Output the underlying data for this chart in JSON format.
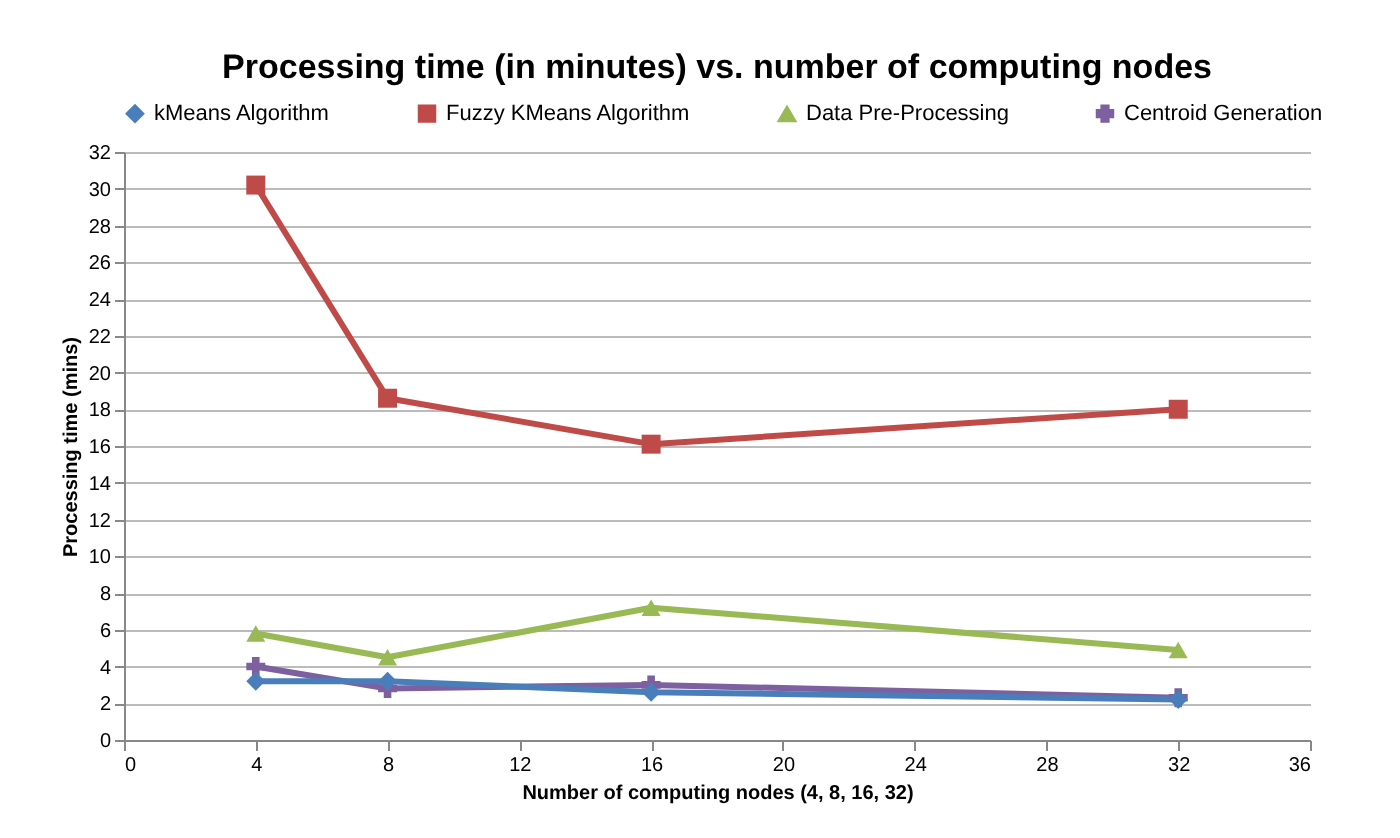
{
  "chart_data": {
    "type": "line",
    "title": "Processing time (in minutes) vs. number of computing nodes",
    "xlabel": "Number of computing nodes (4, 8, 16, 32)",
    "ylabel": "Processing time (mins)",
    "x": [
      4,
      8,
      16,
      32
    ],
    "series": [
      {
        "name": "kMeans Algorithm",
        "color": "#4a7ebb",
        "marker": "diamond",
        "values": [
          3.2,
          3.2,
          2.6,
          2.2
        ]
      },
      {
        "name": "Fuzzy KMeans Algorithm",
        "color": "#be4b48",
        "marker": "square",
        "values": [
          30.2,
          18.6,
          16.1,
          18.0
        ]
      },
      {
        "name": "Data Pre-Processing",
        "color": "#98b954",
        "marker": "triangle",
        "values": [
          5.8,
          4.5,
          7.2,
          4.9
        ]
      },
      {
        "name": "Centroid Generation",
        "color": "#7d60a0",
        "marker": "cross",
        "values": [
          4.0,
          2.8,
          3.0,
          2.3
        ]
      }
    ],
    "xlim": [
      0,
      36
    ],
    "xticks": [
      0,
      4,
      8,
      12,
      16,
      20,
      24,
      28,
      32,
      36
    ],
    "ylim": [
      0,
      32
    ],
    "yticks": [
      0,
      2,
      4,
      6,
      8,
      10,
      12,
      14,
      16,
      18,
      20,
      22,
      24,
      26,
      28,
      30,
      32
    ],
    "grid": "y",
    "legend": "top"
  }
}
